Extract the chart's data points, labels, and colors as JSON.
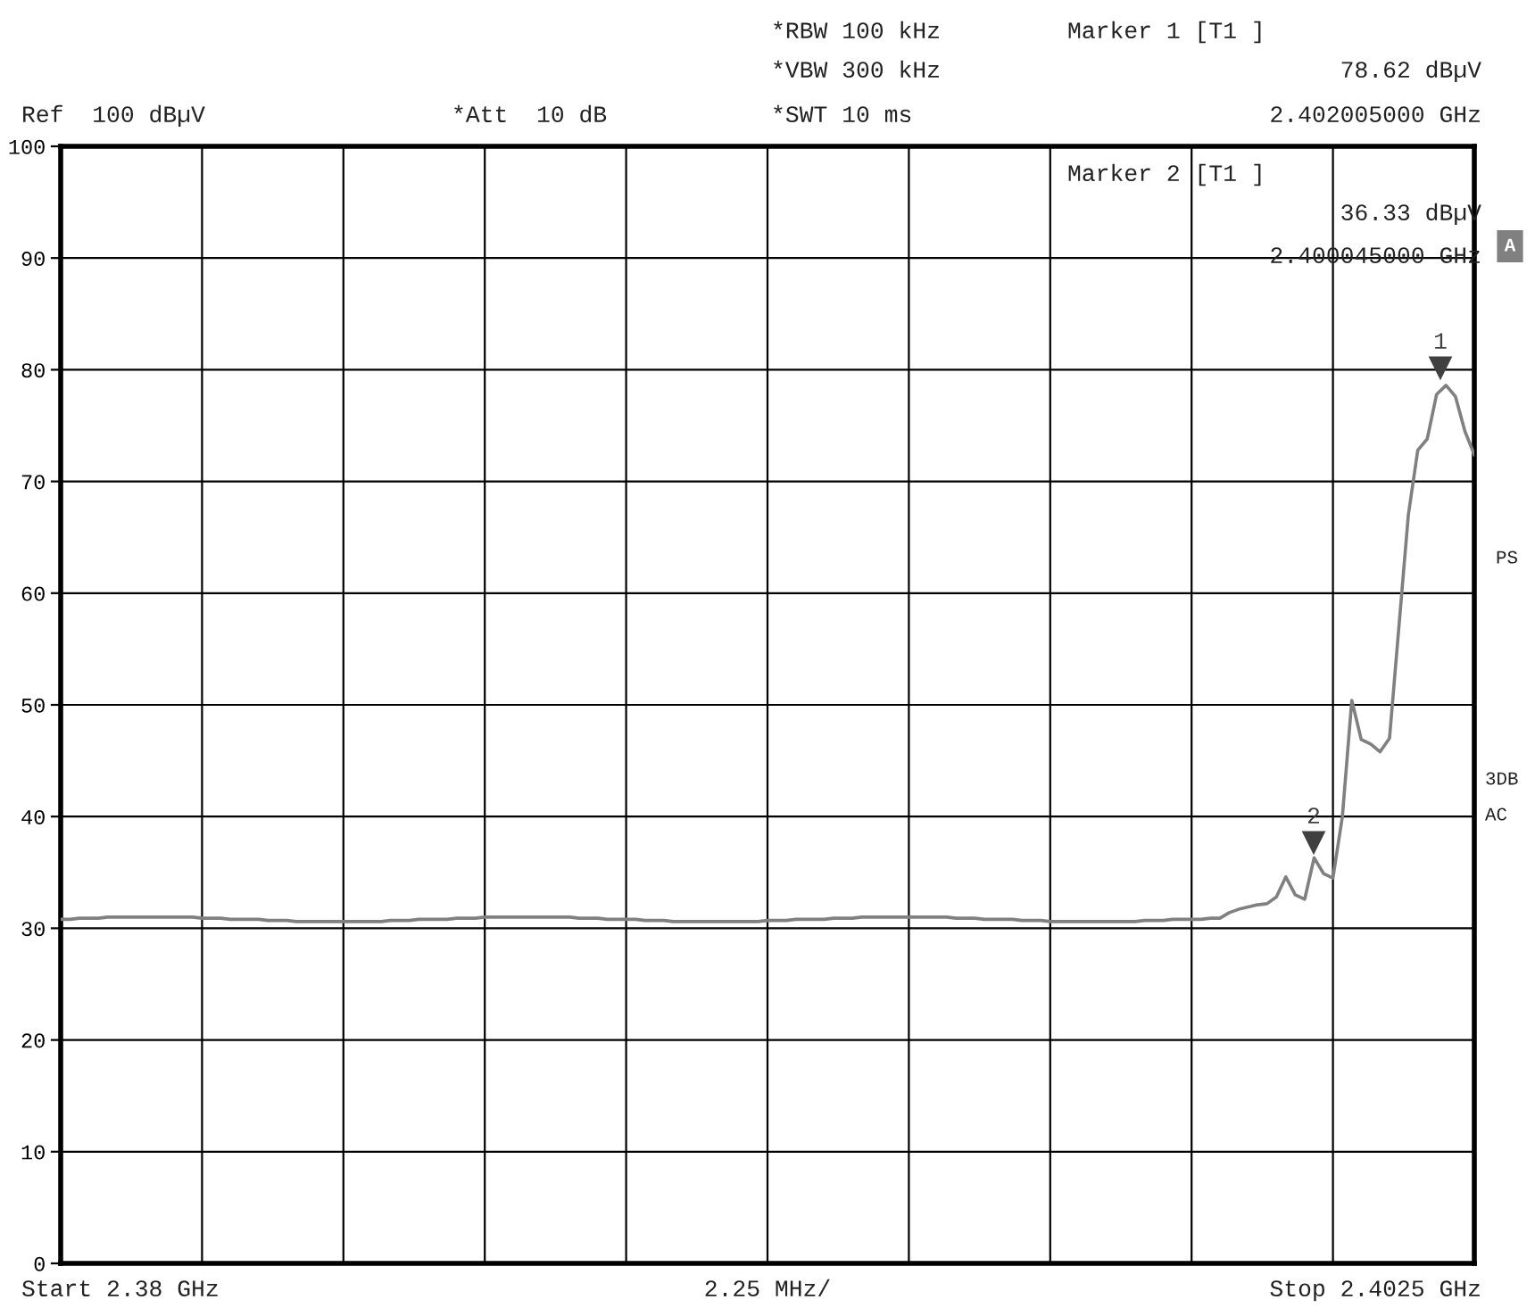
{
  "chart_data": {
    "type": "line",
    "categories": [
      null,
      null,
      null,
      null,
      null,
      null,
      null,
      null,
      null,
      null,
      null,
      null,
      null,
      null,
      null,
      null,
      null,
      null,
      null,
      null,
      null,
      null,
      null,
      null,
      null,
      null,
      null,
      null,
      null,
      null,
      null,
      null,
      null,
      null,
      null,
      null,
      null,
      null,
      null,
      null,
      null,
      null,
      null,
      null,
      null,
      null,
      null,
      null,
      null,
      null,
      null,
      null,
      null,
      null,
      null,
      null,
      null,
      null,
      null,
      null,
      null,
      null,
      null,
      null,
      null,
      null,
      null,
      null,
      null,
      null,
      null,
      null,
      null,
      null,
      null,
      null,
      null,
      null,
      null,
      null,
      null,
      null,
      null,
      null,
      null,
      null,
      null,
      null,
      null,
      null,
      null,
      null,
      null,
      null,
      null,
      null,
      null,
      null,
      null,
      null,
      null,
      null,
      null,
      null,
      null,
      null,
      null,
      null,
      null,
      null,
      null,
      null,
      null,
      null,
      null,
      null,
      null,
      null,
      null,
      null,
      null,
      null,
      null,
      null,
      null,
      null,
      null,
      null,
      null,
      null,
      null,
      null,
      null,
      null,
      null,
      null,
      null,
      null,
      null,
      null,
      null,
      null,
      null,
      null,
      null,
      null,
      null,
      null,
      null,
      null,
      null
    ],
    "ylim": [
      0,
      100
    ],
    "yticks": [
      0,
      10,
      20,
      30,
      40,
      50,
      60,
      70,
      80,
      90,
      100
    ],
    "tick_labels": "y",
    "grid": true,
    "series": [
      {
        "color": "#808080",
        "values": [
          30.8,
          30.8,
          30.9,
          30.9,
          30.9,
          31.0,
          31.0,
          31.0,
          31.0,
          31.0,
          31.0,
          31.0,
          31.0,
          31.0,
          31.0,
          30.9,
          30.9,
          30.9,
          30.8,
          30.8,
          30.8,
          30.8,
          30.7,
          30.7,
          30.7,
          30.6,
          30.6,
          30.6,
          30.6,
          30.6,
          30.6,
          30.6,
          30.6,
          30.6,
          30.6,
          30.7,
          30.7,
          30.7,
          30.8,
          30.8,
          30.8,
          30.8,
          30.9,
          30.9,
          30.9,
          31.0,
          31.0,
          31.0,
          31.0,
          31.0,
          31.0,
          31.0,
          31.0,
          31.0,
          31.0,
          30.9,
          30.9,
          30.9,
          30.8,
          30.8,
          30.8,
          30.8,
          30.7,
          30.7,
          30.7,
          30.6,
          30.6,
          30.6,
          30.6,
          30.6,
          30.6,
          30.6,
          30.6,
          30.6,
          30.6,
          30.7,
          30.7,
          30.7,
          30.8,
          30.8,
          30.8,
          30.8,
          30.9,
          30.9,
          30.9,
          31.0,
          31.0,
          31.0,
          31.0,
          31.0,
          31.0,
          31.0,
          31.0,
          31.0,
          31.0,
          30.9,
          30.9,
          30.9,
          30.8,
          30.8,
          30.8,
          30.8,
          30.7,
          30.7,
          30.7,
          30.6,
          30.6,
          30.6,
          30.6,
          30.6,
          30.6,
          30.6,
          30.6,
          30.6,
          30.6,
          30.7,
          30.7,
          30.7,
          30.8,
          30.8,
          30.8,
          30.8,
          30.9,
          30.9,
          31.4,
          31.7,
          31.9,
          32.1,
          32.2,
          32.8,
          34.6,
          33.0,
          32.6,
          36.3,
          34.9,
          34.5,
          40.0,
          50.4,
          46.9,
          46.5,
          45.8,
          47.0,
          57.0,
          67.0,
          72.8,
          73.8,
          77.8,
          78.6,
          77.6,
          74.5,
          72.4
        ]
      }
    ],
    "annotations": [
      "*RBW 100 kHz",
      "*VBW 300 kHz",
      "*SWT 10 ms",
      "Ref  100 dBµV",
      "*Att  10 dB",
      "Marker 1 [T1 ]",
      "78.62 dBµV",
      "2.402005000 GHz",
      "Marker 2 [T1 ]",
      "36.33 dBµV",
      "2.400045000 GHz",
      "A",
      "PS",
      "3DB",
      "AC",
      "Start 2.38 GHz",
      "2.25 MHz/",
      "Stop 2.4025 GHz",
      "1",
      "2"
    ]
  }
}
